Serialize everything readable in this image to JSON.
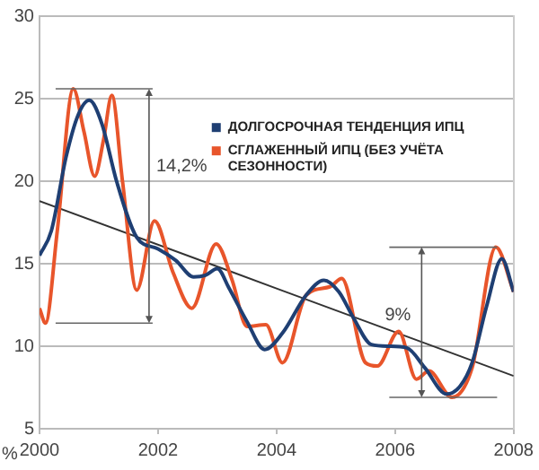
{
  "chart_data": {
    "type": "line",
    "ylabel": "%",
    "xlim": [
      2000,
      2008
    ],
    "xticks": [
      2000,
      2002,
      2004,
      2006,
      2008
    ],
    "ylim": [
      5,
      30
    ],
    "yticks": [
      5,
      10,
      15,
      20,
      25,
      30
    ],
    "grid": "y",
    "legend": "right",
    "marker": "none",
    "line_style": "solid",
    "series": [
      {
        "name": "ДОЛГОСРОЧНАЯ ТЕНДЕНЦИЯ ИПЦ",
        "color": "#1f3f73",
        "x": [
          2000,
          2000.2,
          2000.45,
          2000.65,
          2000.84,
          2001.05,
          2001.3,
          2001.64,
          2002,
          2002.3,
          2002.6,
          2002.8,
          2003,
          2003.2,
          2003.5,
          2003.8,
          2004.1,
          2004.5,
          2004.8,
          2005.05,
          2005.3,
          2005.6,
          2005.9,
          2006.2,
          2006.5,
          2006.87,
          2007.1,
          2007.3,
          2007.55,
          2007.8,
          2008
        ],
        "values": [
          15.5,
          17,
          21.5,
          24,
          24.9,
          23.5,
          20,
          16.6,
          15.9,
          15.2,
          14.2,
          14.3,
          14.7,
          13.5,
          11.5,
          9.8,
          10.8,
          13.1,
          14,
          13.3,
          11.7,
          10.1,
          10,
          9.9,
          8.7,
          7.1,
          7.6,
          9,
          12.5,
          15.3,
          13.3
        ]
      },
      {
        "name": "СГЛАЖЕННЫЙ ИПЦ (БЕЗ УЧЁТА СЕЗОННОСТИ)",
        "color": "#e8552b",
        "x": [
          2000,
          2000.1,
          2000.3,
          2000.57,
          2000.75,
          2000.93,
          2001.08,
          2001.22,
          2001.4,
          2001.64,
          2001.94,
          2002.25,
          2002.57,
          2002.98,
          2003.25,
          2003.5,
          2003.82,
          2004.1,
          2004.5,
          2004.9,
          2005.1,
          2005.5,
          2005.7,
          2006.06,
          2006.36,
          2006.57,
          2006.96,
          2007.3,
          2007.7,
          2008
        ],
        "values": [
          12.3,
          11.4,
          17,
          25.6,
          23,
          20.3,
          22.5,
          25.2,
          20,
          13.4,
          17.6,
          14.5,
          12.3,
          16.2,
          14,
          11.2,
          11.3,
          9,
          13.1,
          13.6,
          14.1,
          9,
          8.8,
          10.9,
          8,
          8.5,
          6.9,
          8.7,
          16,
          13.3
        ]
      },
      {
        "type": "line",
        "color": "#333333",
        "x": [
          2000,
          2008
        ],
        "values": [
          18.8,
          8.2
        ]
      }
    ],
    "ref_lines": [
      {
        "axis": "y",
        "value": 25.6
      },
      {
        "axis": "y",
        "value": 11.4
      },
      {
        "axis": "y",
        "value": 16
      },
      {
        "axis": "y",
        "value": 6.9
      }
    ],
    "annotations": [
      "14,2%",
      "9%"
    ]
  }
}
